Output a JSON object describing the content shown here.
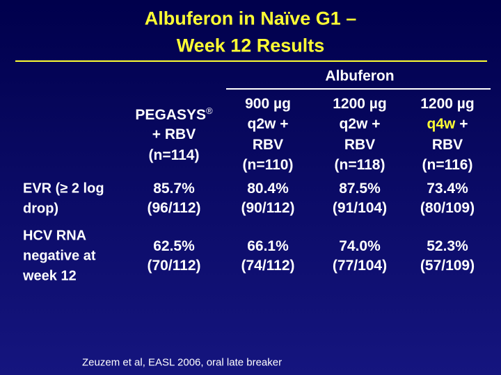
{
  "header": {
    "title_lines": [
      "Albuferon in Naïve G1 –",
      "Week 12 Results"
    ]
  },
  "table": {
    "group_header": "Albuferon",
    "columns": [
      {
        "lines": [
          [
            "PEGASYS",
            "®"
          ],
          [
            "+ RBV"
          ],
          [
            "(n=114)"
          ]
        ]
      },
      {
        "lines": [
          [
            "900 µg"
          ],
          [
            "q2w +"
          ],
          [
            "RBV"
          ],
          [
            "(n=110)"
          ]
        ]
      },
      {
        "lines": [
          [
            "1200 µg"
          ],
          [
            "q2w +"
          ],
          [
            "RBV"
          ],
          [
            "(n=118)"
          ]
        ]
      },
      {
        "lines": [
          [
            "1200 µg"
          ],
          [
            "q4w",
            " +"
          ],
          [
            "RBV"
          ],
          [
            "(n=116)"
          ]
        ]
      }
    ],
    "rows": [
      {
        "label": [
          "EVR (≥ 2 log",
          "drop)"
        ],
        "cells": [
          [
            "85.7%",
            "(96/112)"
          ],
          [
            "80.4%",
            "(90/112)"
          ],
          [
            "87.5%",
            "(91/104)"
          ],
          [
            "73.4%",
            "(80/109)"
          ]
        ]
      },
      {
        "label": [
          "HCV RNA",
          "negative at",
          "week 12"
        ],
        "cells": [
          [
            "62.5%",
            "(70/112)"
          ],
          [
            "66.1%",
            "(74/112)"
          ],
          [
            "74.0%",
            "(77/104)"
          ],
          [
            "52.3%",
            "(57/109)"
          ]
        ]
      }
    ]
  },
  "footnote": "Zeuzem et al, EASL 2006, oral late breaker"
}
